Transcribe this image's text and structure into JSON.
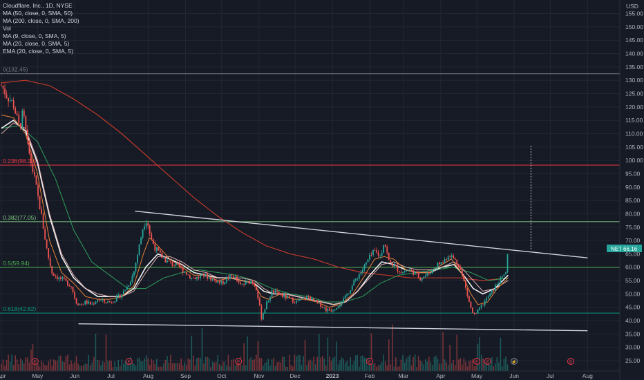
{
  "legend": {
    "title": "Cloudflare, Inc., 1D, NYSE",
    "indicators": [
      "MA (50, close, 0, SMA, 50)",
      "MA (200, close, 0, SMA, 200)",
      "Vol",
      "MA (9, close, 0, SMA, 5)",
      "MA (20, close, 0, SMA, 5)",
      "EMA (20, close, 0, SMA, 5)"
    ]
  },
  "currency": "USD",
  "price_tag": {
    "symbol": "NET",
    "value": "66.16",
    "color": "#26a69a"
  },
  "chart_data": {
    "type": "candlestick",
    "price_ticks": [
      25,
      30,
      35,
      40,
      45,
      50,
      55,
      60,
      65,
      70,
      75,
      80,
      85,
      90,
      95,
      100,
      105,
      110,
      115,
      120,
      125,
      130,
      135,
      140,
      145,
      150,
      155
    ],
    "price_tick_labels": [
      "25.00",
      "30.00",
      "35.00",
      "40.00",
      "45.00",
      "50.00",
      "55.00",
      "60.00",
      "65.00",
      "70.00",
      "75.00",
      "80.00",
      "85.00",
      "90.00",
      "95.00",
      "100.00",
      "105.00",
      "110.00",
      "115.00",
      "120.00",
      "125.00",
      "130.00",
      "135.00",
      "140.00",
      "145.00",
      "150.00",
      "155.00"
    ],
    "ylim": [
      22,
      157
    ],
    "x_labels": [
      "Apr",
      "May",
      "Jun",
      "Jul",
      "Aug",
      "Sep",
      "Oct",
      "Nov",
      "Dec",
      "2023",
      "Feb",
      "Mar",
      "Apr",
      "May",
      "Jun",
      "Jul",
      "Aug"
    ],
    "x_label_days": [
      0,
      30,
      61,
      91,
      122,
      153,
      183,
      214,
      244,
      275,
      306,
      334,
      365,
      395,
      426,
      456,
      487
    ],
    "last_price": 66.16,
    "fib_levels": [
      {
        "label": "0(132.45)",
        "value": 132.45,
        "color": "#787b86"
      },
      {
        "label": "0.236(98.23)",
        "value": 98.23,
        "color": "#f23645"
      },
      {
        "label": "0.382(77.05)",
        "value": 77.05,
        "color": "#81c784"
      },
      {
        "label": "0.5(59.94)",
        "value": 59.94,
        "color": "#4caf50"
      },
      {
        "label": "0.618(42.82)",
        "value": 42.82,
        "color": "#089981"
      }
    ],
    "price_path": [
      [
        0,
        128
      ],
      [
        5,
        124
      ],
      [
        10,
        121
      ],
      [
        15,
        112
      ],
      [
        18,
        118
      ],
      [
        22,
        105
      ],
      [
        28,
        92
      ],
      [
        33,
        80
      ],
      [
        38,
        66
      ],
      [
        42,
        58
      ],
      [
        47,
        56
      ],
      [
        52,
        55
      ],
      [
        58,
        53
      ],
      [
        62,
        47
      ],
      [
        66,
        46
      ],
      [
        70,
        47
      ],
      [
        75,
        46
      ],
      [
        80,
        48
      ],
      [
        85,
        47
      ],
      [
        90,
        47
      ],
      [
        95,
        48
      ],
      [
        100,
        50
      ],
      [
        105,
        53
      ],
      [
        110,
        58
      ],
      [
        115,
        69
      ],
      [
        118,
        76
      ],
      [
        121,
        78
      ],
      [
        124,
        71
      ],
      [
        128,
        67
      ],
      [
        133,
        64
      ],
      [
        138,
        62
      ],
      [
        143,
        61
      ],
      [
        148,
        60
      ],
      [
        153,
        58
      ],
      [
        158,
        56
      ],
      [
        163,
        56
      ],
      [
        168,
        57
      ],
      [
        173,
        56
      ],
      [
        178,
        55
      ],
      [
        183,
        54
      ],
      [
        188,
        56
      ],
      [
        193,
        57
      ],
      [
        198,
        53
      ],
      [
        203,
        54
      ],
      [
        208,
        55
      ],
      [
        212,
        52
      ],
      [
        216,
        41
      ],
      [
        220,
        46
      ],
      [
        225,
        51
      ],
      [
        230,
        50
      ],
      [
        235,
        49
      ],
      [
        240,
        48
      ],
      [
        245,
        47
      ],
      [
        250,
        48
      ],
      [
        255,
        49
      ],
      [
        260,
        47
      ],
      [
        265,
        46
      ],
      [
        270,
        44
      ],
      [
        275,
        44
      ],
      [
        280,
        46
      ],
      [
        285,
        48
      ],
      [
        290,
        52
      ],
      [
        295,
        56
      ],
      [
        300,
        59
      ],
      [
        305,
        63
      ],
      [
        310,
        66
      ],
      [
        315,
        64
      ],
      [
        318,
        70
      ],
      [
        322,
        62
      ],
      [
        327,
        60
      ],
      [
        333,
        58
      ],
      [
        338,
        59
      ],
      [
        343,
        58
      ],
      [
        348,
        56
      ],
      [
        353,
        57
      ],
      [
        358,
        59
      ],
      [
        362,
        61
      ],
      [
        367,
        62
      ],
      [
        372,
        65
      ],
      [
        376,
        63
      ],
      [
        380,
        61
      ],
      [
        384,
        55
      ],
      [
        388,
        48
      ],
      [
        391,
        43
      ],
      [
        394,
        42
      ],
      [
        398,
        45
      ],
      [
        403,
        48
      ],
      [
        408,
        51
      ],
      [
        412,
        54
      ],
      [
        416,
        56
      ],
      [
        419,
        58
      ],
      [
        421,
        66
      ]
    ],
    "ma9_path": [
      [
        0,
        117
      ],
      [
        10,
        116
      ],
      [
        20,
        110
      ],
      [
        30,
        95
      ],
      [
        40,
        70
      ],
      [
        50,
        58
      ],
      [
        60,
        54
      ],
      [
        70,
        49
      ],
      [
        80,
        48
      ],
      [
        90,
        48
      ],
      [
        100,
        49
      ],
      [
        110,
        53
      ],
      [
        118,
        65
      ],
      [
        123,
        71
      ],
      [
        130,
        68
      ],
      [
        140,
        63
      ],
      [
        150,
        60
      ],
      [
        160,
        57
      ],
      [
        170,
        57
      ],
      [
        180,
        55
      ],
      [
        190,
        56
      ],
      [
        200,
        55
      ],
      [
        210,
        54
      ],
      [
        216,
        49
      ],
      [
        222,
        48
      ],
      [
        232,
        50
      ],
      [
        242,
        48
      ],
      [
        252,
        48
      ],
      [
        262,
        47
      ],
      [
        272,
        45
      ],
      [
        282,
        46
      ],
      [
        292,
        50
      ],
      [
        302,
        57
      ],
      [
        310,
        63
      ],
      [
        318,
        64
      ],
      [
        326,
        63
      ],
      [
        336,
        59
      ],
      [
        346,
        58
      ],
      [
        356,
        58
      ],
      [
        366,
        61
      ],
      [
        374,
        63
      ],
      [
        382,
        58
      ],
      [
        390,
        50
      ],
      [
        396,
        46
      ],
      [
        404,
        47
      ],
      [
        412,
        52
      ],
      [
        421,
        56
      ]
    ],
    "ma20_path": [
      [
        0,
        110
      ],
      [
        10,
        114
      ],
      [
        20,
        112
      ],
      [
        30,
        100
      ],
      [
        40,
        80
      ],
      [
        50,
        65
      ],
      [
        60,
        57
      ],
      [
        70,
        52
      ],
      [
        80,
        50
      ],
      [
        90,
        49
      ],
      [
        100,
        49
      ],
      [
        110,
        51
      ],
      [
        120,
        58
      ],
      [
        130,
        64
      ],
      [
        140,
        64
      ],
      [
        150,
        62
      ],
      [
        160,
        59
      ],
      [
        170,
        58
      ],
      [
        180,
        56
      ],
      [
        190,
        56
      ],
      [
        200,
        56
      ],
      [
        210,
        55
      ],
      [
        218,
        52
      ],
      [
        226,
        50
      ],
      [
        236,
        50
      ],
      [
        246,
        49
      ],
      [
        256,
        48
      ],
      [
        266,
        47
      ],
      [
        276,
        46
      ],
      [
        286,
        47
      ],
      [
        296,
        51
      ],
      [
        306,
        56
      ],
      [
        316,
        61
      ],
      [
        326,
        62
      ],
      [
        336,
        60
      ],
      [
        346,
        59
      ],
      [
        356,
        59
      ],
      [
        366,
        60
      ],
      [
        376,
        62
      ],
      [
        384,
        59
      ],
      [
        392,
        55
      ],
      [
        400,
        51
      ],
      [
        410,
        52
      ],
      [
        421,
        55
      ]
    ],
    "ema20_path": [
      [
        0,
        112
      ],
      [
        10,
        115
      ],
      [
        20,
        111
      ],
      [
        30,
        99
      ],
      [
        40,
        79
      ],
      [
        50,
        64
      ],
      [
        60,
        56
      ],
      [
        70,
        52
      ],
      [
        80,
        49
      ],
      [
        90,
        49
      ],
      [
        100,
        49
      ],
      [
        110,
        52
      ],
      [
        120,
        60
      ],
      [
        130,
        65
      ],
      [
        140,
        63
      ],
      [
        150,
        61
      ],
      [
        160,
        58
      ],
      [
        170,
        57
      ],
      [
        180,
        56
      ],
      [
        190,
        56
      ],
      [
        200,
        55
      ],
      [
        210,
        54
      ],
      [
        218,
        51
      ],
      [
        226,
        50
      ],
      [
        236,
        50
      ],
      [
        246,
        49
      ],
      [
        256,
        48
      ],
      [
        266,
        47
      ],
      [
        276,
        46
      ],
      [
        286,
        47
      ],
      [
        296,
        51
      ],
      [
        306,
        57
      ],
      [
        316,
        62
      ],
      [
        326,
        61
      ],
      [
        336,
        59
      ],
      [
        346,
        58
      ],
      [
        356,
        58
      ],
      [
        366,
        60
      ],
      [
        376,
        61
      ],
      [
        384,
        57
      ],
      [
        392,
        52
      ],
      [
        400,
        50
      ],
      [
        410,
        52
      ],
      [
        421,
        57
      ]
    ],
    "ma50_path": [
      [
        0,
        112
      ],
      [
        15,
        113
      ],
      [
        30,
        107
      ],
      [
        45,
        93
      ],
      [
        60,
        74
      ],
      [
        75,
        62
      ],
      [
        90,
        57
      ],
      [
        105,
        52
      ],
      [
        120,
        52
      ],
      [
        135,
        56
      ],
      [
        150,
        58
      ],
      [
        165,
        59
      ],
      [
        180,
        58
      ],
      [
        195,
        57
      ],
      [
        210,
        55
      ],
      [
        225,
        52
      ],
      [
        240,
        50
      ],
      [
        255,
        49
      ],
      [
        270,
        47
      ],
      [
        285,
        47
      ],
      [
        300,
        49
      ],
      [
        315,
        54
      ],
      [
        330,
        57
      ],
      [
        345,
        58
      ],
      [
        360,
        59
      ],
      [
        375,
        60
      ],
      [
        390,
        58
      ],
      [
        405,
        55
      ],
      [
        421,
        56
      ]
    ],
    "ma200_path": [
      [
        0,
        129
      ],
      [
        20,
        130
      ],
      [
        40,
        128
      ],
      [
        60,
        123
      ],
      [
        80,
        117
      ],
      [
        100,
        110
      ],
      [
        120,
        102
      ],
      [
        140,
        94
      ],
      [
        160,
        86
      ],
      [
        180,
        79
      ],
      [
        200,
        73
      ],
      [
        220,
        68
      ],
      [
        240,
        65
      ],
      [
        260,
        63
      ],
      [
        280,
        60
      ],
      [
        300,
        58
      ],
      [
        320,
        57
      ],
      [
        340,
        56
      ],
      [
        360,
        56
      ],
      [
        380,
        56
      ],
      [
        400,
        55
      ],
      [
        421,
        56
      ]
    ],
    "trendlines": [
      {
        "name": "upper",
        "from": [
          111,
          81
        ],
        "to": [
          487,
          63.5
        ],
        "color": "#d1d4dc"
      },
      {
        "name": "lower",
        "from": [
          64,
          38.8
        ],
        "to": [
          487,
          36.2
        ],
        "color": "#d1d4dc"
      }
    ],
    "measure_line": {
      "day": 440,
      "from": 105.5,
      "to": 66.5
    },
    "events": [
      {
        "day": 28,
        "label": "E"
      },
      {
        "day": 106,
        "label": "E"
      },
      {
        "day": 197,
        "label": "E"
      },
      {
        "day": 306,
        "label": "E"
      },
      {
        "day": 395,
        "label": "E"
      },
      {
        "day": 404,
        "label": "E"
      },
      {
        "day": 473,
        "label": "E"
      },
      {
        "day": 426,
        "label": "⚡"
      }
    ]
  }
}
